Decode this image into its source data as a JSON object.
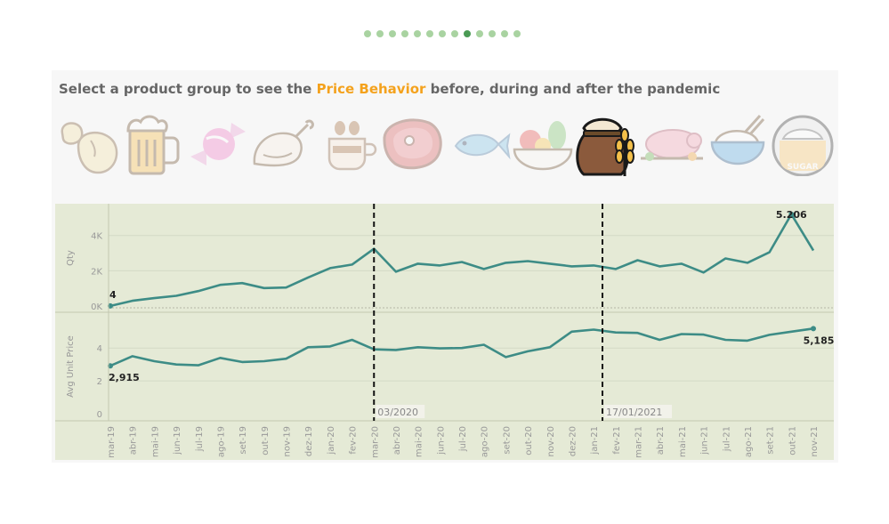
{
  "pager": {
    "count": 13,
    "active_index": 8
  },
  "header": {
    "prefix": "Select a product group to see the ",
    "highlight": "Price Behavior",
    "suffix": " before, during and after the pandemic"
  },
  "product_groups": [
    {
      "name": "beans-icon",
      "selected": false
    },
    {
      "name": "beer-mug-icon",
      "selected": false
    },
    {
      "name": "candy-icon",
      "selected": false
    },
    {
      "name": "chicken-icon",
      "selected": false
    },
    {
      "name": "coffee-cup-icon",
      "selected": false
    },
    {
      "name": "steak-icon",
      "selected": false
    },
    {
      "name": "fish-icon",
      "selected": false
    },
    {
      "name": "fruit-bowl-icon",
      "selected": false
    },
    {
      "name": "flour-sack-wheat-icon",
      "selected": true
    },
    {
      "name": "roast-pig-icon",
      "selected": false
    },
    {
      "name": "rice-bowl-icon",
      "selected": false
    },
    {
      "name": "sugar-bowl-icon",
      "selected": false
    }
  ],
  "sugar_label": "SUGAR",
  "colors": {
    "line": "#3d8c86",
    "plot_bg": "#e5ead6",
    "accent": "#f4a21d"
  },
  "chart_data": {
    "type": "line",
    "x": [
      "mar-19",
      "abr-19",
      "mai-19",
      "jun-19",
      "jul-19",
      "ago-19",
      "set-19",
      "out-19",
      "nov-19",
      "dez-19",
      "jan-20",
      "fev-20",
      "mar-20",
      "abr-20",
      "mai-20",
      "jun-20",
      "jul-20",
      "ago-20",
      "set-20",
      "out-20",
      "nov-20",
      "dez-20",
      "jan-21",
      "fev-21",
      "mar-21",
      "abr-21",
      "mai-21",
      "jun-21",
      "jul-21",
      "ago-21",
      "set-21",
      "out-21",
      "nov-21"
    ],
    "panels": [
      {
        "ylabel": "Qty",
        "ylim": [
          0,
          5500
        ],
        "yticks": [
          0,
          2000,
          4000
        ],
        "ytick_labels": [
          "0K",
          "2K",
          "4K"
        ],
        "values": [
          4,
          300,
          450,
          580,
          850,
          1200,
          1300,
          1020,
          1050,
          1620,
          2150,
          2350,
          3250,
          1950,
          2400,
          2300,
          2500,
          2100,
          2450,
          2550,
          2400,
          2250,
          2300,
          2100,
          2600,
          2250,
          2400,
          1900,
          2700,
          2450,
          3050,
          5206,
          3150
        ],
        "point_labels": [
          {
            "index": 0,
            "text": "4"
          },
          {
            "index": 31,
            "text": "5.206"
          }
        ]
      },
      {
        "ylabel": "Avg Unit Price",
        "ylim": [
          0,
          5.8
        ],
        "yticks": [
          0,
          2,
          4
        ],
        "ytick_labels": [
          "0",
          "2",
          "4"
        ],
        "values": [
          2.915,
          3.5,
          3.2,
          3.0,
          2.95,
          3.4,
          3.15,
          3.2,
          3.35,
          4.05,
          4.1,
          4.5,
          3.92,
          3.88,
          4.05,
          3.98,
          4.0,
          4.2,
          3.45,
          3.8,
          4.05,
          5.0,
          5.12,
          4.95,
          4.92,
          4.5,
          4.85,
          4.82,
          4.5,
          4.45,
          4.8,
          5.0,
          5.185
        ],
        "point_labels": [
          {
            "index": 0,
            "text": "2,915"
          },
          {
            "index": 32,
            "text": "5,185"
          }
        ]
      }
    ],
    "reference_lines": [
      {
        "index": 12,
        "label": "03/2020"
      },
      {
        "index": 22.4,
        "label": "17/01/2021"
      }
    ],
    "grid": true
  }
}
